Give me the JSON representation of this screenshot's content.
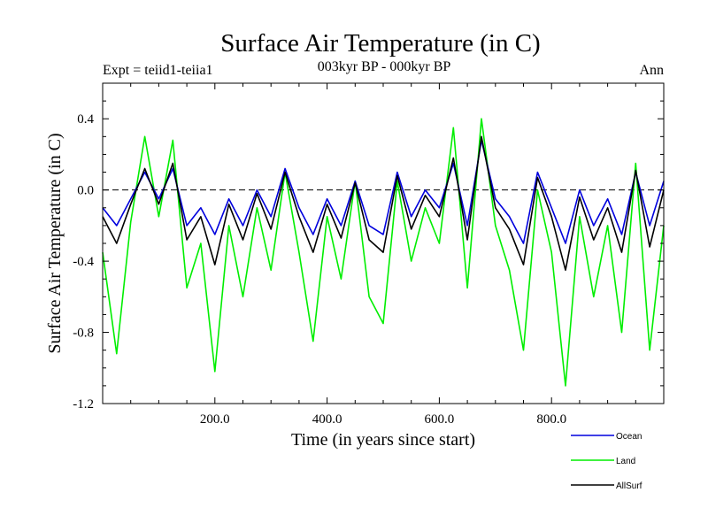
{
  "chart_data": {
    "type": "line",
    "title": "Surface Air Temperature (in C)",
    "subtitle": "003kyr BP - 000kyr BP",
    "left_annotation": "Expt = teiid1-teiia1",
    "right_annotation": "Ann",
    "xlabel": "Time (in years since start)",
    "ylabel": "Surface Air Temperature (in C)",
    "xlim": [
      0,
      1000
    ],
    "ylim": [
      -1.2,
      0.6
    ],
    "xticks": [
      200,
      400,
      600,
      800
    ],
    "xtick_labels": [
      "200.0",
      "400.0",
      "600.0",
      "800.0"
    ],
    "yticks": [
      -1.2,
      -0.8,
      -0.4,
      0.0,
      0.4
    ],
    "ytick_labels": [
      "-1.2",
      "-0.8",
      "-0.4",
      "0.0",
      "0.4"
    ],
    "reference_line": {
      "y": 0.0,
      "style": "dashed"
    },
    "grid": false,
    "legend_position": "bottom-right",
    "series": [
      {
        "name": "Land",
        "color": "#00ee00",
        "x": [
          0,
          25,
          50,
          75,
          100,
          125,
          150,
          175,
          200,
          225,
          250,
          275,
          300,
          325,
          350,
          375,
          400,
          425,
          450,
          475,
          500,
          525,
          550,
          575,
          600,
          625,
          650,
          675,
          700,
          725,
          750,
          775,
          800,
          825,
          850,
          875,
          900,
          925,
          950,
          975,
          1000
        ],
        "values": [
          -0.35,
          -0.92,
          -0.18,
          0.3,
          -0.15,
          0.28,
          -0.55,
          -0.3,
          -1.02,
          -0.2,
          -0.6,
          -0.1,
          -0.45,
          0.1,
          -0.35,
          -0.85,
          -0.15,
          -0.5,
          0.05,
          -0.6,
          -0.75,
          0.05,
          -0.4,
          -0.1,
          -0.3,
          0.35,
          -0.55,
          0.4,
          -0.2,
          -0.45,
          -0.9,
          0.0,
          -0.35,
          -1.1,
          -0.15,
          -0.6,
          -0.2,
          -0.8,
          0.15,
          -0.9,
          -0.2
        ]
      },
      {
        "name": "Ocean",
        "color": "#0000dd",
        "x": [
          0,
          25,
          50,
          75,
          100,
          125,
          150,
          175,
          200,
          225,
          250,
          275,
          300,
          325,
          350,
          375,
          400,
          425,
          450,
          475,
          500,
          525,
          550,
          575,
          600,
          625,
          650,
          675,
          700,
          725,
          750,
          775,
          800,
          825,
          850,
          875,
          900,
          925,
          950,
          975,
          1000
        ],
        "values": [
          -0.1,
          -0.2,
          -0.05,
          0.1,
          -0.05,
          0.12,
          -0.2,
          -0.1,
          -0.25,
          -0.05,
          -0.2,
          0.0,
          -0.15,
          0.12,
          -0.1,
          -0.25,
          -0.05,
          -0.2,
          0.05,
          -0.2,
          -0.25,
          0.1,
          -0.15,
          0.0,
          -0.1,
          0.15,
          -0.2,
          0.28,
          -0.05,
          -0.15,
          -0.3,
          0.1,
          -0.1,
          -0.3,
          0.0,
          -0.2,
          -0.05,
          -0.25,
          0.1,
          -0.2,
          0.05
        ]
      },
      {
        "name": "AllSurf",
        "color": "#000000",
        "x": [
          0,
          25,
          50,
          75,
          100,
          125,
          150,
          175,
          200,
          225,
          250,
          275,
          300,
          325,
          350,
          375,
          400,
          425,
          450,
          475,
          500,
          525,
          550,
          575,
          600,
          625,
          650,
          675,
          700,
          725,
          750,
          775,
          800,
          825,
          850,
          875,
          900,
          925,
          950,
          975,
          1000
        ],
        "values": [
          -0.15,
          -0.3,
          -0.08,
          0.12,
          -0.08,
          0.15,
          -0.28,
          -0.15,
          -0.42,
          -0.08,
          -0.28,
          -0.02,
          -0.22,
          0.1,
          -0.15,
          -0.35,
          -0.08,
          -0.27,
          0.04,
          -0.28,
          -0.35,
          0.08,
          -0.22,
          -0.03,
          -0.15,
          0.18,
          -0.28,
          0.3,
          -0.1,
          -0.22,
          -0.42,
          0.07,
          -0.15,
          -0.45,
          -0.04,
          -0.28,
          -0.1,
          -0.35,
          0.11,
          -0.32,
          0.0
        ]
      }
    ]
  }
}
